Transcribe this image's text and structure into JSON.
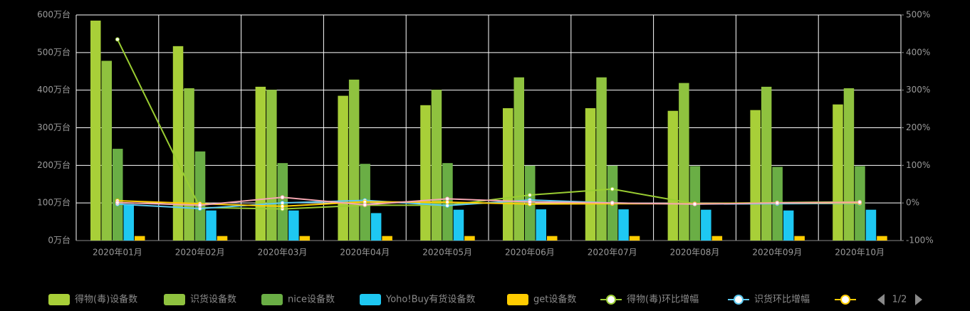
{
  "chart_data": {
    "type": "bar_line",
    "categories": [
      "2020年01月",
      "2020年02月",
      "2020年03月",
      "2020年04月",
      "2020年05月",
      "2020年06月",
      "2020年07月",
      "2020年08月",
      "2020年09月",
      "2020年10月"
    ],
    "ylim": [
      0,
      600
    ],
    "yticks": [
      {
        "value": 0,
        "label": "0万台"
      },
      {
        "value": 100,
        "label": "100万台"
      },
      {
        "value": 200,
        "label": "200万台"
      },
      {
        "value": 300,
        "label": "300万台"
      },
      {
        "value": 400,
        "label": "400万台"
      },
      {
        "value": 500,
        "label": "500万台"
      },
      {
        "value": 600,
        "label": "600万台"
      }
    ],
    "y2lim": [
      -100,
      500
    ],
    "y2ticks": [
      {
        "value": -100,
        "label": "-100%"
      },
      {
        "value": 0,
        "label": "0%"
      },
      {
        "value": 100,
        "label": "100%"
      },
      {
        "value": 200,
        "label": "200%"
      },
      {
        "value": 300,
        "label": "300%"
      },
      {
        "value": 400,
        "label": "400%"
      },
      {
        "value": 500,
        "label": "500%"
      }
    ],
    "grid": true,
    "series": [
      {
        "name": "得物(毒)设备数",
        "type": "bar",
        "color": "#a8cf38",
        "values": [
          585,
          517,
          409,
          385,
          360,
          352,
          352,
          345,
          347,
          362
        ]
      },
      {
        "name": "识货设备数",
        "type": "bar",
        "color": "#8fc23f",
        "values": [
          478,
          405,
          401,
          428,
          401,
          434,
          434,
          419,
          409,
          405
        ]
      },
      {
        "name": "nice设备数",
        "type": "bar",
        "color": "#6aae45",
        "values": [
          244,
          237,
          206,
          204,
          206,
          199,
          199,
          198,
          196,
          198
        ]
      },
      {
        "name": "Yoho!Buy有货设备数",
        "type": "bar",
        "color": "#1ec8f2",
        "values": [
          97,
          80,
          80,
          73,
          82,
          83,
          83,
          82,
          80,
          82
        ]
      },
      {
        "name": "get设备数",
        "type": "bar",
        "color": "#ffcc00",
        "values": [
          12,
          12,
          12,
          12,
          12,
          12,
          12,
          12,
          12,
          12
        ]
      },
      {
        "name": "得物(毒)环比增幅",
        "type": "line",
        "axis": "y2",
        "color": "#9acd32",
        "values": [
          435,
          -12,
          -16,
          -6,
          -6,
          21,
          37,
          -2,
          1,
          3
        ]
      },
      {
        "name": "识货环比增幅",
        "type": "line",
        "axis": "y2",
        "color": "#5bc8f0",
        "values": [
          -3,
          -15,
          0,
          7,
          -7,
          8,
          0,
          -3,
          -2,
          -1
        ]
      },
      {
        "type": "line",
        "axis": "y2",
        "color": "#ffcc00",
        "values": [
          6,
          -2,
          -9,
          3,
          2,
          -3,
          -2,
          -2,
          0,
          0
        ]
      },
      {
        "type": "line",
        "axis": "y2",
        "color": "#f4a6b0",
        "values": [
          1,
          -6,
          15,
          -5,
          11,
          3,
          0,
          -3,
          0,
          2
        ]
      }
    ],
    "legend_page": "1/2"
  }
}
